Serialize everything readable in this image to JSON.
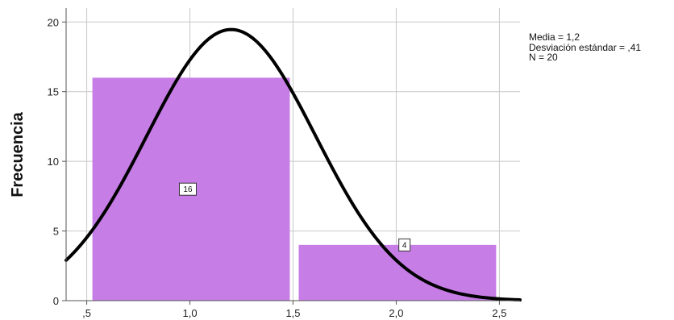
{
  "chart_data": {
    "type": "bar",
    "subtype": "histogram",
    "ylabel": "Frecuencia",
    "xlabel": "",
    "xlim": [
      0.4,
      2.6
    ],
    "ylim": [
      0,
      21
    ],
    "x_ticks": [
      {
        "value": 0.5,
        "label": ",5"
      },
      {
        "value": 1.0,
        "label": "1,0"
      },
      {
        "value": 1.5,
        "label": "1,5"
      },
      {
        "value": 2.0,
        "label": "2,0"
      },
      {
        "value": 2.5,
        "label": "2,5"
      }
    ],
    "y_ticks": [
      {
        "value": 0,
        "label": "0"
      },
      {
        "value": 5,
        "label": "5"
      },
      {
        "value": 10,
        "label": "10"
      },
      {
        "value": 15,
        "label": "15"
      },
      {
        "value": 20,
        "label": "20"
      }
    ],
    "bins": [
      {
        "x0": 0.5,
        "x1": 1.5,
        "value": 16,
        "label": "16"
      },
      {
        "x0": 1.5,
        "x1": 2.5,
        "value": 4,
        "label": "4"
      }
    ],
    "normal_curve": {
      "mean": 1.2,
      "sd": 0.41,
      "n": 20,
      "bin_width": 1.0
    },
    "grid": true,
    "legend": "none",
    "colors": {
      "bar": "#c77de6",
      "curve": "#000000",
      "grid": "#c8c8c8",
      "axis": "#555555"
    }
  },
  "stats_box": {
    "mean": "Media = 1,2",
    "sd": "Desviación estándar = ,41",
    "n": "N = 20"
  }
}
